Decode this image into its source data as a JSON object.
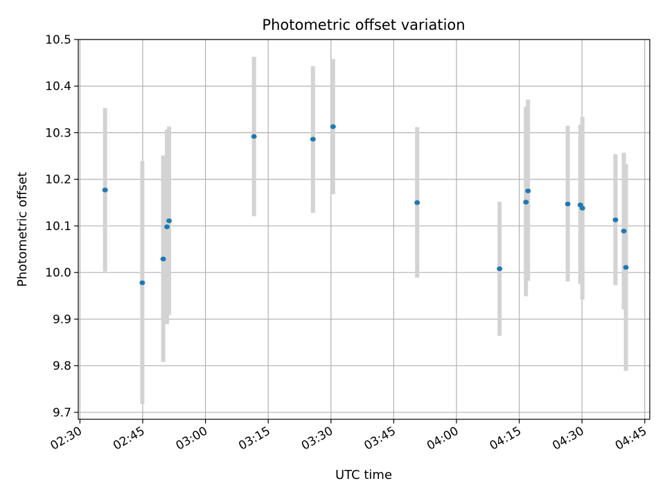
{
  "chart_data": {
    "type": "scatter",
    "title": "Photometric offset variation",
    "xlabel": "UTC time",
    "ylabel": "Photometric offset",
    "x_tick_labels": [
      "02:30",
      "02:45",
      "03:00",
      "03:15",
      "03:30",
      "03:45",
      "04:00",
      "04:15",
      "04:30",
      "04:45"
    ],
    "y_tick_labels": [
      "9.7",
      "9.8",
      "9.9",
      "10.0",
      "10.1",
      "10.2",
      "10.3",
      "10.4",
      "10.5"
    ],
    "x_ticks": [
      "02:30",
      "02:45",
      "03:00",
      "03:15",
      "03:30",
      "03:45",
      "04:00",
      "04:15",
      "04:30",
      "04:45"
    ],
    "y_ticks": [
      9.7,
      9.8,
      9.9,
      10.0,
      10.1,
      10.2,
      10.3,
      10.4,
      10.5
    ],
    "xlim": [
      "02:29.6",
      "04:46.2"
    ],
    "ylim": [
      9.685,
      10.5
    ],
    "grid": true,
    "marker_color": "#1f77b4",
    "errorbar_color": "#d3d3d3",
    "points": [
      {
        "time": "02:36",
        "y": 10.177,
        "ylow": 10.002,
        "yhigh": 10.353
      },
      {
        "time": "02:44.9",
        "y": 9.978,
        "ylow": 9.718,
        "yhigh": 10.239
      },
      {
        "time": "02:49.9",
        "y": 10.029,
        "ylow": 9.808,
        "yhigh": 10.251
      },
      {
        "time": "02:50.8",
        "y": 10.098,
        "ylow": 9.889,
        "yhigh": 10.307
      },
      {
        "time": "02:51.3",
        "y": 10.111,
        "ylow": 9.909,
        "yhigh": 10.313
      },
      {
        "time": "03:11.6",
        "y": 10.292,
        "ylow": 10.121,
        "yhigh": 10.463
      },
      {
        "time": "03:25.7",
        "y": 10.286,
        "ylow": 10.128,
        "yhigh": 10.443
      },
      {
        "time": "03:30.5",
        "y": 10.313,
        "ylow": 10.168,
        "yhigh": 10.458
      },
      {
        "time": "03:50.6",
        "y": 10.15,
        "ylow": 9.989,
        "yhigh": 10.312
      },
      {
        "time": "04:10.3",
        "y": 10.008,
        "ylow": 9.864,
        "yhigh": 10.152
      },
      {
        "time": "04:16.6",
        "y": 10.151,
        "ylow": 9.949,
        "yhigh": 10.356
      },
      {
        "time": "04:17.1",
        "y": 10.175,
        "ylow": 9.982,
        "yhigh": 10.371
      },
      {
        "time": "04:26.6",
        "y": 10.147,
        "ylow": 9.981,
        "yhigh": 10.315
      },
      {
        "time": "04:29.6",
        "y": 10.145,
        "ylow": 9.975,
        "yhigh": 10.317
      },
      {
        "time": "04:30.1",
        "y": 10.138,
        "ylow": 9.942,
        "yhigh": 10.334
      },
      {
        "time": "04:38",
        "y": 10.113,
        "ylow": 9.973,
        "yhigh": 10.254
      },
      {
        "time": "04:40",
        "y": 10.089,
        "ylow": 9.921,
        "yhigh": 10.257
      },
      {
        "time": "04:40.5",
        "y": 10.011,
        "ylow": 9.789,
        "yhigh": 10.233
      }
    ]
  }
}
